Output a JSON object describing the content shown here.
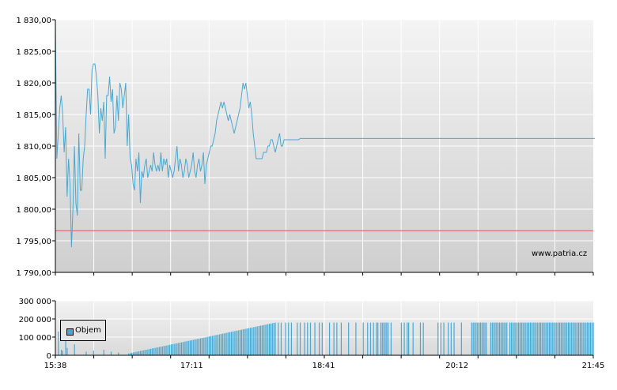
{
  "chart_data": [
    {
      "type": "line",
      "name_panel": "price",
      "ylim": [
        1790,
        1830
      ],
      "yticks": [
        1790,
        1795,
        1800,
        1805,
        1810,
        1815,
        1820,
        1825,
        1830
      ],
      "ytick_labels": [
        "1 790,00",
        "1 795,00",
        "1 800,00",
        "1 805,00",
        "1 810,00",
        "1 815,00",
        "1 820,00",
        "1 825,00",
        "1 830,00"
      ],
      "grid": true,
      "reference_line": 1796.6,
      "reference_color": "#e06060",
      "series_color": "#4aa8d0",
      "watermark": "www.patria.cz",
      "x_minutes": [
        0,
        1,
        2,
        3,
        4,
        5,
        6,
        7,
        8,
        9,
        10,
        11,
        12,
        13,
        14,
        15,
        16,
        17,
        18,
        19,
        20,
        21,
        22,
        23,
        24,
        25,
        26,
        27,
        28,
        29,
        30,
        31,
        32,
        33,
        34,
        35,
        36,
        37,
        38,
        39,
        40,
        41,
        42,
        43,
        44,
        45,
        46,
        47,
        48,
        49,
        50,
        51,
        52,
        53,
        54,
        55,
        56,
        57,
        58,
        59,
        60,
        61,
        62,
        63,
        64,
        65,
        66,
        67,
        68,
        69,
        70,
        71,
        72,
        73,
        74,
        75,
        76,
        77,
        78,
        79,
        80,
        81,
        82,
        83,
        84,
        85,
        86,
        87,
        88,
        89,
        90,
        91,
        92,
        93,
        94,
        95,
        96,
        97,
        98,
        99,
        100,
        101,
        102,
        103,
        104,
        105,
        106,
        107,
        108,
        109,
        110,
        111,
        112,
        113,
        114,
        115,
        116,
        117,
        118,
        119,
        120,
        121,
        122,
        123,
        124,
        125,
        126,
        127,
        128,
        129,
        130,
        131,
        132,
        133,
        134,
        135,
        136,
        137,
        138,
        139,
        140,
        141,
        142,
        143,
        144,
        145,
        146,
        147,
        148,
        149,
        150,
        151,
        152,
        153,
        154,
        155,
        156,
        157,
        158,
        159,
        160,
        161,
        162,
        163,
        164,
        165,
        166,
        167,
        368
      ],
      "values": [
        1829.5,
        1808,
        1812,
        1816,
        1818,
        1815,
        1809,
        1813,
        1802,
        1808,
        1804,
        1794,
        1800,
        1810,
        1801,
        1799,
        1812,
        1803,
        1803,
        1808,
        1810,
        1815,
        1819,
        1819,
        1815,
        1822,
        1823,
        1823,
        1821,
        1818,
        1812,
        1816,
        1814,
        1817,
        1808,
        1818,
        1818,
        1821,
        1817,
        1819,
        1812,
        1813,
        1818,
        1814,
        1820,
        1819,
        1816,
        1818,
        1820,
        1810,
        1815,
        1808,
        1807,
        1804,
        1803,
        1808,
        1806,
        1809,
        1801,
        1806,
        1805,
        1807,
        1808,
        1805,
        1806,
        1807,
        1806,
        1809,
        1807,
        1806,
        1807,
        1806,
        1809,
        1806,
        1808,
        1807,
        1808,
        1805,
        1807,
        1806,
        1805,
        1806,
        1808,
        1810,
        1806,
        1808,
        1807,
        1805,
        1806,
        1808,
        1807,
        1805,
        1806,
        1807,
        1809,
        1806,
        1805,
        1807,
        1808,
        1806,
        1807,
        1809,
        1804,
        1807,
        1808,
        1809,
        1810,
        1810,
        1811,
        1812,
        1814,
        1815,
        1816,
        1817,
        1816,
        1817,
        1816,
        1815,
        1814,
        1815,
        1814,
        1813,
        1812,
        1813,
        1814,
        1815,
        1816,
        1818,
        1820,
        1819,
        1820,
        1818,
        1816,
        1817,
        1815,
        1812,
        1810,
        1808,
        1808,
        1808,
        1808,
        1808,
        1809,
        1809,
        1809,
        1810,
        1810,
        1811,
        1811,
        1810,
        1809,
        1810,
        1811,
        1812,
        1810,
        1810,
        1811,
        1811,
        1811,
        1811,
        1811,
        1811,
        1811,
        1811,
        1811,
        1811,
        1811,
        1811.2,
        1811.2
      ]
    },
    {
      "type": "bar",
      "name_panel": "volume",
      "ylim": [
        0,
        300000
      ],
      "yticks": [
        0,
        100000,
        200000,
        300000
      ],
      "ytick_labels": [
        "0",
        "100 000",
        "200 000",
        "300 000"
      ],
      "legend": "Objem",
      "legend_placement": "top-left",
      "series_color": "#4aa8d0",
      "xtick_labels": [
        "15:38",
        "17:11",
        "18:41",
        "20:12",
        "21:45"
      ],
      "xtick_minutes": [
        0,
        93,
        183,
        274,
        367
      ],
      "total_minutes": 367,
      "ramp": {
        "start_minute": 50,
        "end_minute": 150,
        "start_value": 10000,
        "end_value": 180000
      },
      "sparse_bars_minutes": [
        152,
        154,
        157,
        159,
        161,
        165,
        167,
        170,
        172,
        174,
        177,
        180,
        182,
        187,
        190,
        192,
        195,
        200,
        205,
        210,
        213,
        215,
        217,
        219,
        220,
        222,
        223,
        224,
        225,
        226,
        227,
        229,
        236,
        238,
        240,
        241,
        244,
        249,
        251,
        261,
        263,
        265,
        268,
        270,
        272,
        277,
        284,
        285,
        286,
        287,
        288,
        289,
        290,
        291,
        292,
        293,
        294,
        297,
        298,
        299,
        300,
        301,
        302,
        303,
        304,
        305,
        306,
        307,
        308,
        310,
        311,
        312,
        313,
        314,
        315,
        316,
        317,
        318,
        319,
        320,
        321,
        322,
        323,
        324,
        325,
        326,
        327,
        328,
        329,
        330,
        331,
        332,
        333,
        334,
        335,
        336,
        337,
        338,
        339,
        340,
        341,
        342,
        343,
        344,
        345,
        346,
        347,
        348,
        349,
        350,
        351,
        352,
        353,
        354,
        355,
        356,
        357,
        358,
        359,
        360,
        361,
        362,
        363,
        364,
        365,
        366,
        367
      ],
      "sparse_value": 180000,
      "early_bars": [
        {
          "minute": 2,
          "value": 130000
        },
        {
          "minute": 4,
          "value": 30000
        },
        {
          "minute": 5,
          "value": 25000
        },
        {
          "minute": 7,
          "value": 90000
        },
        {
          "minute": 8,
          "value": 40000
        },
        {
          "minute": 13,
          "value": 60000
        },
        {
          "minute": 21,
          "value": 20000
        },
        {
          "minute": 26,
          "value": 25000
        },
        {
          "minute": 33,
          "value": 30000
        },
        {
          "minute": 38,
          "value": 20000
        },
        {
          "minute": 43,
          "value": 15000
        }
      ]
    }
  ]
}
